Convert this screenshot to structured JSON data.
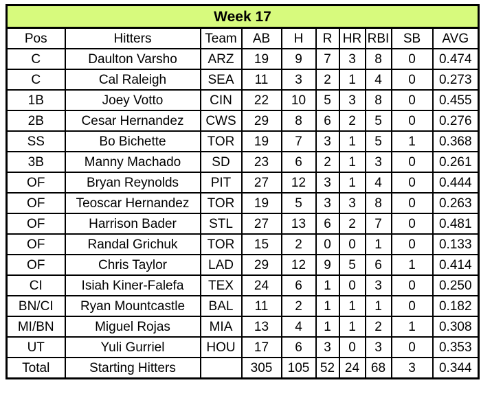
{
  "colors": {
    "title_bg": "#d7fa7d",
    "border": "#000000",
    "text": "#000000",
    "row_bg": "#ffffff"
  },
  "chart_data": {
    "type": "table",
    "title": "Week 17",
    "columns": [
      "Pos",
      "Hitters",
      "Team",
      "AB",
      "H",
      "R",
      "HR",
      "RBI",
      "SB",
      "AVG"
    ],
    "rows": [
      [
        "C",
        "Daulton Varsho",
        "ARZ",
        "19",
        "9",
        "7",
        "3",
        "8",
        "0",
        "0.474"
      ],
      [
        "C",
        "Cal Raleigh",
        "SEA",
        "11",
        "3",
        "2",
        "1",
        "4",
        "0",
        "0.273"
      ],
      [
        "1B",
        "Joey Votto",
        "CIN",
        "22",
        "10",
        "5",
        "3",
        "8",
        "0",
        "0.455"
      ],
      [
        "2B",
        "Cesar Hernandez",
        "CWS",
        "29",
        "8",
        "6",
        "2",
        "5",
        "0",
        "0.276"
      ],
      [
        "SS",
        "Bo Bichette",
        "TOR",
        "19",
        "7",
        "3",
        "1",
        "5",
        "1",
        "0.368"
      ],
      [
        "3B",
        "Manny Machado",
        "SD",
        "23",
        "6",
        "2",
        "1",
        "3",
        "0",
        "0.261"
      ],
      [
        "OF",
        "Bryan Reynolds",
        "PIT",
        "27",
        "12",
        "3",
        "1",
        "4",
        "0",
        "0.444"
      ],
      [
        "OF",
        "Teoscar Hernandez",
        "TOR",
        "19",
        "5",
        "3",
        "3",
        "8",
        "0",
        "0.263"
      ],
      [
        "OF",
        "Harrison Bader",
        "STL",
        "27",
        "13",
        "6",
        "2",
        "7",
        "0",
        "0.481"
      ],
      [
        "OF",
        "Randal Grichuk",
        "TOR",
        "15",
        "2",
        "0",
        "0",
        "1",
        "0",
        "0.133"
      ],
      [
        "OF",
        "Chris Taylor",
        "LAD",
        "29",
        "12",
        "9",
        "5",
        "6",
        "1",
        "0.414"
      ],
      [
        "CI",
        "Isiah Kiner-Falefa",
        "TEX",
        "24",
        "6",
        "1",
        "0",
        "3",
        "0",
        "0.250"
      ],
      [
        "BN/CI",
        "Ryan Mountcastle",
        "BAL",
        "11",
        "2",
        "1",
        "1",
        "1",
        "0",
        "0.182"
      ],
      [
        "MI/BN",
        "Miguel Rojas",
        "MIA",
        "13",
        "4",
        "1",
        "1",
        "2",
        "1",
        "0.308"
      ],
      [
        "UT",
        "Yuli Gurriel",
        "HOU",
        "17",
        "6",
        "3",
        "0",
        "3",
        "0",
        "0.353"
      ]
    ],
    "total_row": [
      "Total",
      "Starting Hitters",
      "",
      "305",
      "105",
      "52",
      "24",
      "68",
      "3",
      "0.344"
    ],
    "layout": {
      "grid": "all-borders",
      "text_align": "center"
    }
  }
}
